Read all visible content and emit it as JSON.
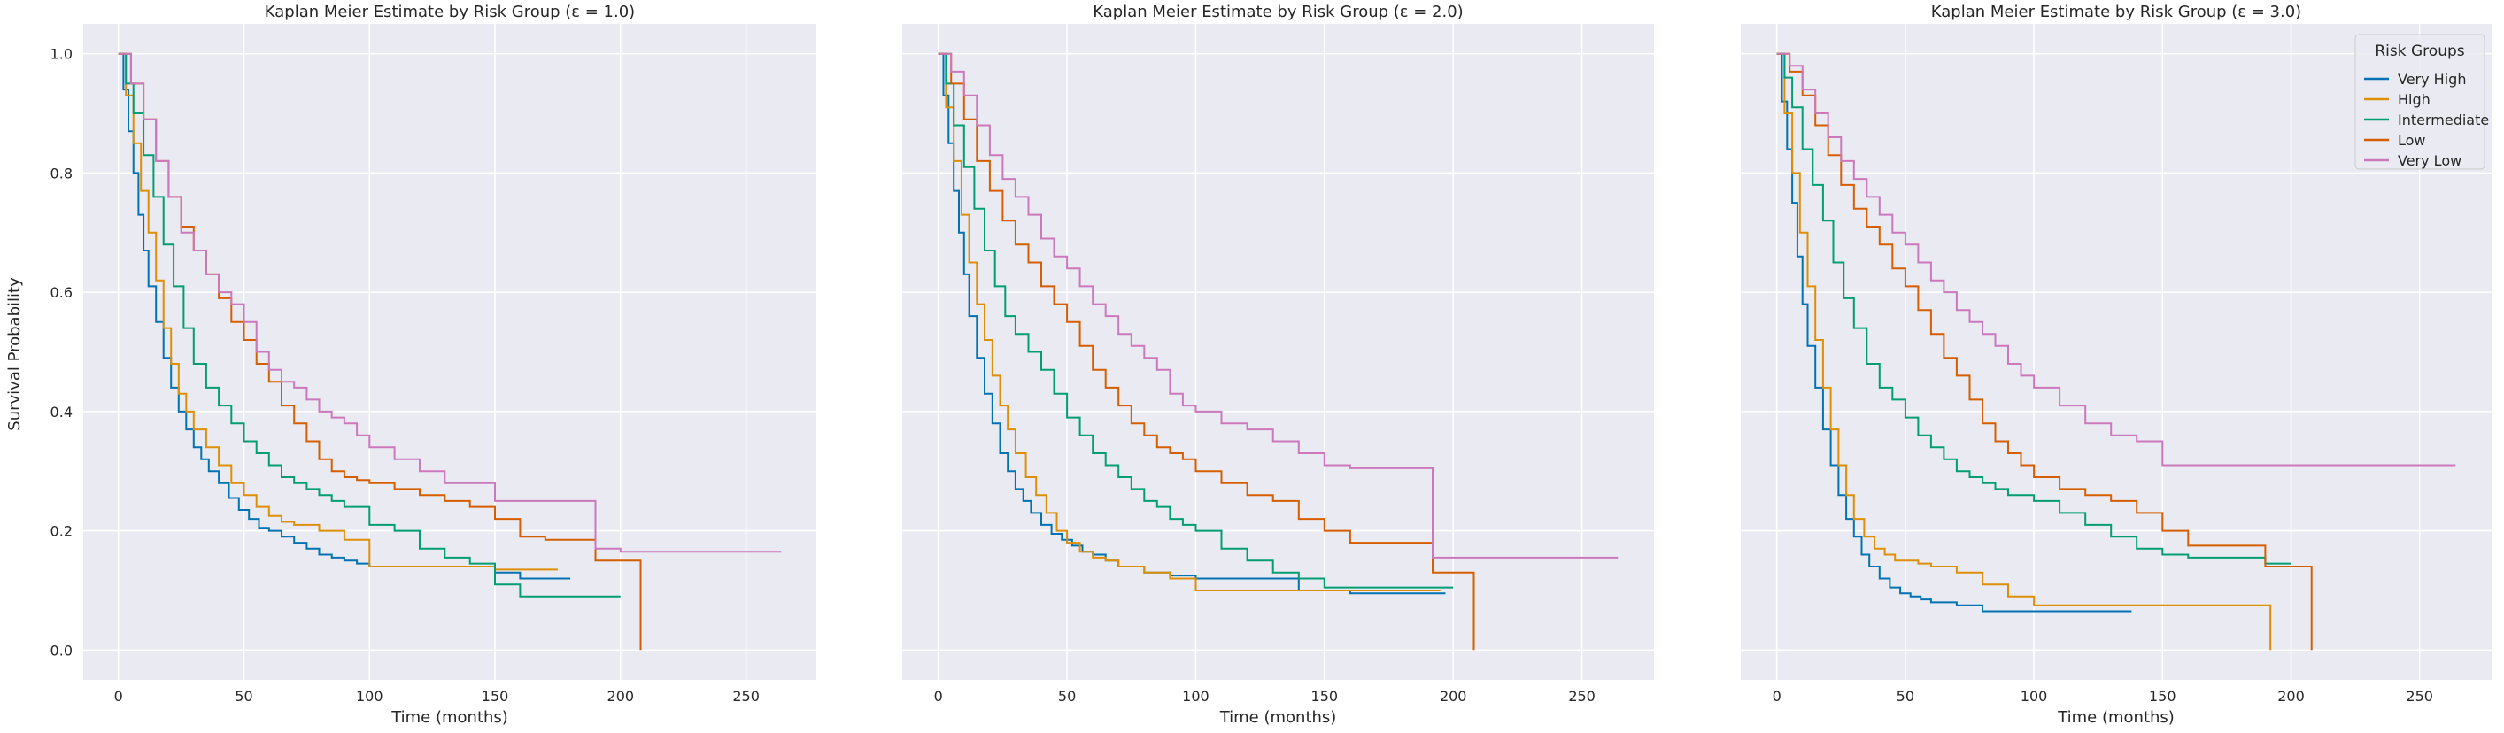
{
  "figure": {
    "ylabel": "Survival Probability",
    "legend_title": "Risk Groups",
    "legend_placement": "top-right of third panel"
  },
  "colors": {
    "plot_background": "#eaeaf2",
    "grid": "#ffffff",
    "Very High": "#0173b2",
    "High": "#de8f05",
    "Intermediate": "#029e73",
    "Low": "#d55e00",
    "Very Low": "#cc78bc"
  },
  "chart_data": [
    {
      "type": "line",
      "step": true,
      "title": "Kaplan Meier Estimate by Risk Group (ε = 1.0)",
      "xlabel": "Time (months)",
      "ylabel": "Survival Probability",
      "xlim": [
        -14,
        278
      ],
      "ylim": [
        -0.05,
        1.05
      ],
      "xticks": [
        0,
        50,
        100,
        150,
        200,
        250
      ],
      "yticks": [
        0.0,
        0.2,
        0.4,
        0.6,
        0.8,
        1.0
      ],
      "grid": true,
      "series": [
        {
          "name": "Very High",
          "x": [
            0,
            2,
            4,
            6,
            8,
            10,
            12,
            15,
            18,
            21,
            24,
            27,
            30,
            33,
            36,
            40,
            44,
            48,
            52,
            56,
            60,
            65,
            70,
            75,
            80,
            85,
            90,
            95,
            100,
            110,
            120,
            130,
            140,
            150,
            160,
            170,
            180
          ],
          "y": [
            1.0,
            0.94,
            0.87,
            0.8,
            0.73,
            0.67,
            0.61,
            0.55,
            0.49,
            0.44,
            0.4,
            0.37,
            0.34,
            0.32,
            0.3,
            0.28,
            0.255,
            0.235,
            0.22,
            0.205,
            0.2,
            0.19,
            0.18,
            0.17,
            0.16,
            0.155,
            0.15,
            0.145,
            0.14,
            0.14,
            0.14,
            0.14,
            0.14,
            0.13,
            0.12,
            0.12,
            0.12
          ]
        },
        {
          "name": "High",
          "x": [
            0,
            3,
            6,
            9,
            12,
            15,
            18,
            21,
            24,
            27,
            30,
            35,
            40,
            45,
            50,
            55,
            60,
            65,
            70,
            80,
            90,
            100,
            110,
            120,
            130,
            140,
            150,
            160,
            175
          ],
          "y": [
            1.0,
            0.93,
            0.85,
            0.77,
            0.7,
            0.62,
            0.54,
            0.48,
            0.43,
            0.4,
            0.37,
            0.34,
            0.31,
            0.28,
            0.26,
            0.24,
            0.225,
            0.215,
            0.21,
            0.2,
            0.185,
            0.14,
            0.14,
            0.14,
            0.14,
            0.14,
            0.135,
            0.135,
            0.135
          ]
        },
        {
          "name": "Intermediate",
          "x": [
            0,
            3,
            6,
            10,
            14,
            18,
            22,
            26,
            30,
            35,
            40,
            45,
            50,
            55,
            60,
            65,
            70,
            75,
            80,
            85,
            90,
            100,
            110,
            120,
            130,
            140,
            150,
            160,
            175,
            200
          ],
          "y": [
            1.0,
            0.95,
            0.9,
            0.83,
            0.76,
            0.68,
            0.61,
            0.54,
            0.48,
            0.44,
            0.41,
            0.38,
            0.35,
            0.33,
            0.31,
            0.29,
            0.28,
            0.27,
            0.26,
            0.25,
            0.24,
            0.21,
            0.2,
            0.17,
            0.155,
            0.145,
            0.11,
            0.09,
            0.09,
            0.09
          ]
        },
        {
          "name": "Low",
          "x": [
            0,
            5,
            10,
            15,
            20,
            25,
            30,
            35,
            40,
            45,
            50,
            55,
            60,
            65,
            70,
            75,
            80,
            85,
            90,
            95,
            100,
            110,
            120,
            130,
            140,
            150,
            160,
            170,
            180,
            190,
            200,
            208
          ],
          "y": [
            1.0,
            0.95,
            0.89,
            0.82,
            0.76,
            0.71,
            0.67,
            0.63,
            0.59,
            0.55,
            0.52,
            0.48,
            0.45,
            0.41,
            0.38,
            0.35,
            0.32,
            0.3,
            0.29,
            0.285,
            0.28,
            0.27,
            0.26,
            0.25,
            0.24,
            0.22,
            0.19,
            0.185,
            0.185,
            0.15,
            0.15,
            0.0
          ]
        },
        {
          "name": "Very Low",
          "x": [
            0,
            5,
            10,
            15,
            20,
            25,
            30,
            35,
            40,
            45,
            50,
            55,
            60,
            65,
            70,
            75,
            80,
            85,
            90,
            95,
            100,
            110,
            120,
            130,
            140,
            150,
            160,
            170,
            180,
            190,
            200,
            220,
            240,
            264
          ],
          "y": [
            1.0,
            0.95,
            0.89,
            0.82,
            0.76,
            0.7,
            0.67,
            0.63,
            0.6,
            0.58,
            0.55,
            0.5,
            0.47,
            0.45,
            0.44,
            0.42,
            0.4,
            0.39,
            0.38,
            0.36,
            0.34,
            0.32,
            0.3,
            0.28,
            0.28,
            0.25,
            0.25,
            0.25,
            0.25,
            0.17,
            0.165,
            0.165,
            0.165,
            0.165
          ]
        }
      ]
    },
    {
      "type": "line",
      "step": true,
      "title": "Kaplan Meier Estimate by Risk Group (ε = 2.0)",
      "xlabel": "Time (months)",
      "ylabel": "",
      "xlim": [
        -14,
        278
      ],
      "ylim": [
        -0.05,
        1.05
      ],
      "xticks": [
        0,
        50,
        100,
        150,
        200,
        250
      ],
      "yticks": [
        0.0,
        0.2,
        0.4,
        0.6,
        0.8,
        1.0
      ],
      "grid": true,
      "series": [
        {
          "name": "Very High",
          "x": [
            0,
            2,
            4,
            6,
            8,
            10,
            12,
            15,
            18,
            21,
            24,
            27,
            30,
            33,
            36,
            40,
            44,
            48,
            52,
            56,
            60,
            65,
            70,
            80,
            90,
            100,
            120,
            140,
            160,
            180,
            197
          ],
          "y": [
            1.0,
            0.93,
            0.85,
            0.77,
            0.7,
            0.63,
            0.56,
            0.49,
            0.43,
            0.38,
            0.33,
            0.3,
            0.27,
            0.25,
            0.23,
            0.21,
            0.195,
            0.185,
            0.175,
            0.165,
            0.16,
            0.15,
            0.14,
            0.13,
            0.125,
            0.12,
            0.12,
            0.1,
            0.095,
            0.095,
            0.095
          ]
        },
        {
          "name": "High",
          "x": [
            0,
            3,
            6,
            9,
            12,
            15,
            18,
            21,
            24,
            27,
            30,
            34,
            38,
            42,
            46,
            50,
            55,
            60,
            65,
            70,
            80,
            90,
            100,
            120,
            140,
            160,
            180,
            195
          ],
          "y": [
            1.0,
            0.91,
            0.82,
            0.73,
            0.65,
            0.58,
            0.52,
            0.46,
            0.41,
            0.37,
            0.33,
            0.29,
            0.26,
            0.23,
            0.2,
            0.18,
            0.165,
            0.155,
            0.15,
            0.14,
            0.13,
            0.12,
            0.1,
            0.1,
            0.1,
            0.1,
            0.1,
            0.1
          ]
        },
        {
          "name": "Intermediate",
          "x": [
            0,
            3,
            6,
            10,
            14,
            18,
            22,
            26,
            30,
            35,
            40,
            45,
            50,
            55,
            60,
            65,
            70,
            75,
            80,
            85,
            90,
            95,
            100,
            110,
            120,
            130,
            140,
            150,
            160,
            170,
            180,
            200
          ],
          "y": [
            1.0,
            0.95,
            0.88,
            0.81,
            0.74,
            0.67,
            0.61,
            0.56,
            0.53,
            0.5,
            0.47,
            0.43,
            0.39,
            0.36,
            0.33,
            0.31,
            0.29,
            0.27,
            0.25,
            0.24,
            0.22,
            0.21,
            0.2,
            0.17,
            0.15,
            0.13,
            0.12,
            0.105,
            0.105,
            0.105,
            0.105,
            0.105
          ]
        },
        {
          "name": "Low",
          "x": [
            0,
            5,
            10,
            15,
            20,
            25,
            30,
            35,
            40,
            45,
            50,
            55,
            60,
            65,
            70,
            75,
            80,
            85,
            90,
            95,
            100,
            110,
            120,
            130,
            140,
            150,
            160,
            170,
            180,
            192,
            208
          ],
          "y": [
            1.0,
            0.95,
            0.89,
            0.82,
            0.77,
            0.72,
            0.68,
            0.65,
            0.61,
            0.58,
            0.55,
            0.51,
            0.47,
            0.44,
            0.41,
            0.38,
            0.36,
            0.34,
            0.33,
            0.32,
            0.3,
            0.28,
            0.26,
            0.25,
            0.22,
            0.2,
            0.18,
            0.18,
            0.18,
            0.13,
            0.0
          ]
        },
        {
          "name": "Very Low",
          "x": [
            0,
            5,
            10,
            15,
            20,
            25,
            30,
            35,
            40,
            45,
            50,
            55,
            60,
            65,
            70,
            75,
            80,
            85,
            90,
            95,
            100,
            110,
            120,
            130,
            140,
            150,
            160,
            170,
            180,
            192,
            210,
            230,
            250,
            264
          ],
          "y": [
            1.0,
            0.97,
            0.93,
            0.88,
            0.83,
            0.79,
            0.76,
            0.73,
            0.69,
            0.66,
            0.64,
            0.61,
            0.58,
            0.56,
            0.53,
            0.51,
            0.49,
            0.47,
            0.43,
            0.41,
            0.4,
            0.38,
            0.37,
            0.35,
            0.33,
            0.31,
            0.305,
            0.305,
            0.305,
            0.155,
            0.155,
            0.155,
            0.155,
            0.155
          ]
        }
      ]
    },
    {
      "type": "line",
      "step": true,
      "title": "Kaplan Meier Estimate by Risk Group (ε = 3.0)",
      "xlabel": "Time (months)",
      "ylabel": "",
      "xlim": [
        -14,
        278
      ],
      "ylim": [
        -0.05,
        1.05
      ],
      "xticks": [
        0,
        50,
        100,
        150,
        200,
        250
      ],
      "yticks": [
        0.0,
        0.2,
        0.4,
        0.6,
        0.8,
        1.0
      ],
      "grid": true,
      "series": [
        {
          "name": "Very High",
          "x": [
            0,
            2,
            4,
            6,
            8,
            10,
            12,
            15,
            18,
            21,
            24,
            27,
            30,
            33,
            36,
            40,
            44,
            48,
            52,
            56,
            60,
            65,
            70,
            80,
            90,
            100,
            110,
            120,
            138
          ],
          "y": [
            1.0,
            0.92,
            0.84,
            0.75,
            0.66,
            0.58,
            0.51,
            0.44,
            0.37,
            0.31,
            0.26,
            0.22,
            0.19,
            0.16,
            0.14,
            0.12,
            0.105,
            0.095,
            0.09,
            0.085,
            0.08,
            0.08,
            0.075,
            0.065,
            0.065,
            0.065,
            0.065,
            0.065,
            0.065
          ]
        },
        {
          "name": "High",
          "x": [
            0,
            3,
            6,
            9,
            12,
            15,
            18,
            21,
            24,
            27,
            30,
            34,
            38,
            42,
            46,
            50,
            55,
            60,
            70,
            80,
            90,
            100,
            110,
            120,
            150,
            170,
            192
          ],
          "y": [
            1.0,
            0.9,
            0.8,
            0.7,
            0.61,
            0.52,
            0.44,
            0.37,
            0.31,
            0.26,
            0.22,
            0.19,
            0.17,
            0.16,
            0.15,
            0.15,
            0.145,
            0.14,
            0.13,
            0.11,
            0.09,
            0.075,
            0.075,
            0.075,
            0.075,
            0.075,
            0.0
          ]
        },
        {
          "name": "Intermediate",
          "x": [
            0,
            3,
            6,
            10,
            14,
            18,
            22,
            26,
            30,
            35,
            40,
            45,
            50,
            55,
            60,
            65,
            70,
            75,
            80,
            85,
            90,
            100,
            110,
            120,
            130,
            140,
            150,
            160,
            170,
            180,
            190,
            200
          ],
          "y": [
            1.0,
            0.96,
            0.91,
            0.84,
            0.78,
            0.72,
            0.65,
            0.59,
            0.54,
            0.48,
            0.44,
            0.42,
            0.39,
            0.36,
            0.34,
            0.32,
            0.3,
            0.29,
            0.28,
            0.27,
            0.26,
            0.25,
            0.23,
            0.21,
            0.19,
            0.17,
            0.16,
            0.155,
            0.155,
            0.155,
            0.145,
            0.145
          ]
        },
        {
          "name": "Low",
          "x": [
            0,
            5,
            10,
            15,
            20,
            25,
            30,
            35,
            40,
            45,
            50,
            55,
            60,
            65,
            70,
            75,
            80,
            85,
            90,
            95,
            100,
            110,
            120,
            130,
            140,
            150,
            160,
            170,
            180,
            190,
            200,
            208
          ],
          "y": [
            1.0,
            0.97,
            0.93,
            0.88,
            0.83,
            0.78,
            0.74,
            0.71,
            0.68,
            0.64,
            0.61,
            0.57,
            0.53,
            0.49,
            0.46,
            0.42,
            0.38,
            0.35,
            0.33,
            0.31,
            0.29,
            0.27,
            0.26,
            0.25,
            0.23,
            0.2,
            0.175,
            0.175,
            0.175,
            0.14,
            0.14,
            0.0
          ]
        },
        {
          "name": "Very Low",
          "x": [
            0,
            5,
            10,
            15,
            20,
            25,
            30,
            35,
            40,
            45,
            50,
            55,
            60,
            65,
            70,
            75,
            80,
            85,
            90,
            95,
            100,
            110,
            120,
            130,
            140,
            150,
            160,
            180,
            200,
            220,
            240,
            264
          ],
          "y": [
            1.0,
            0.98,
            0.94,
            0.9,
            0.86,
            0.82,
            0.79,
            0.76,
            0.73,
            0.7,
            0.68,
            0.65,
            0.62,
            0.6,
            0.57,
            0.55,
            0.53,
            0.51,
            0.48,
            0.46,
            0.44,
            0.41,
            0.38,
            0.36,
            0.35,
            0.31,
            0.31,
            0.31,
            0.31,
            0.31,
            0.31,
            0.31
          ]
        }
      ]
    }
  ]
}
